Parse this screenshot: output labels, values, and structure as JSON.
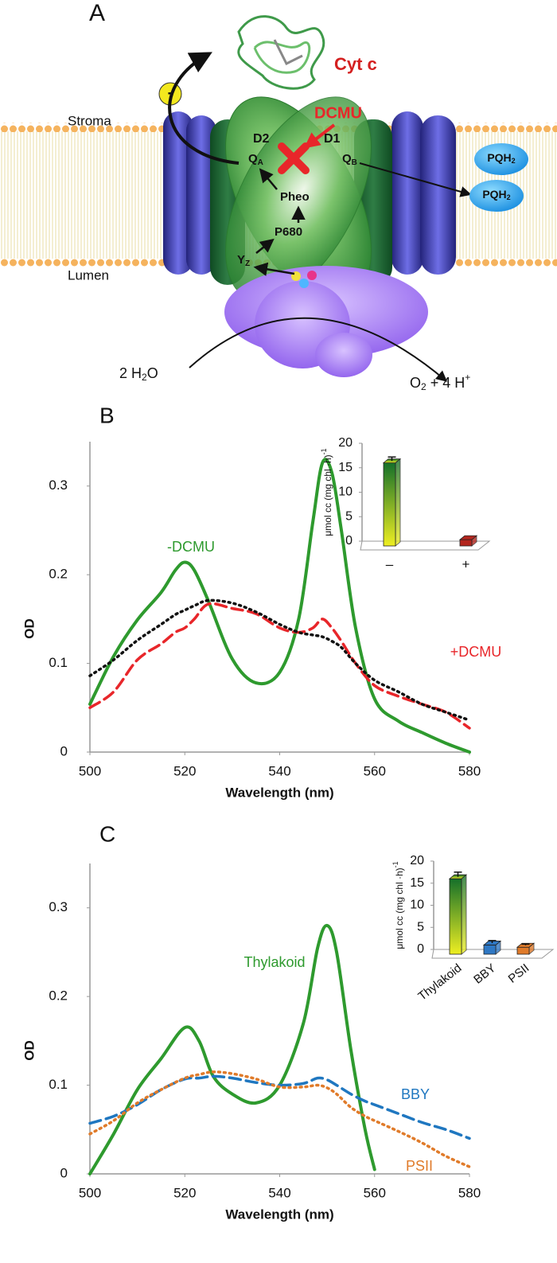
{
  "panel_a": {
    "panel": "A",
    "cyt_c": "Cyt c",
    "dcmu": "DCMU",
    "stroma": "Stroma",
    "lumen": "Lumen",
    "d2": "D2",
    "d1": "D1",
    "qa": [
      "Q",
      "A"
    ],
    "qb": [
      "Q",
      "B"
    ],
    "pheo": "Pheo",
    "p680": "P680",
    "yz": [
      "Y",
      "Z"
    ],
    "pqh2": [
      [
        "PQH",
        "2"
      ],
      [
        "PQH",
        "2"
      ]
    ],
    "electron": "-",
    "water": [
      "2 H",
      "2",
      "O"
    ],
    "products": [
      "O",
      "2",
      " + 4 H",
      "+"
    ]
  },
  "chart_data": [
    {
      "type": "line",
      "panel": "B",
      "xlabel": "Wavelength (nm)",
      "ylabel": "OD",
      "x": [
        500,
        505,
        510,
        515,
        518,
        520,
        522,
        525,
        530,
        535,
        540,
        544,
        547,
        549,
        551,
        553,
        556,
        560,
        565,
        570,
        575,
        580
      ],
      "series": [
        {
          "name": "-DCMU",
          "color": "#2e9a2e",
          "style": "solid",
          "values": [
            0.054,
            0.108,
            0.149,
            0.18,
            0.205,
            0.214,
            0.205,
            0.17,
            0.105,
            0.078,
            0.09,
            0.15,
            0.26,
            0.326,
            0.315,
            0.25,
            0.14,
            0.06,
            0.035,
            0.022,
            0.01,
            0
          ]
        },
        {
          "name": "+DCMU",
          "color": "#e8262a",
          "style": "dashed",
          "values": [
            0.05,
            0.068,
            0.104,
            0.122,
            0.135,
            0.14,
            0.15,
            0.167,
            0.162,
            0.156,
            0.14,
            0.135,
            0.14,
            0.15,
            0.14,
            0.125,
            0.1,
            0.075,
            0.063,
            0.054,
            0.045,
            0.027
          ]
        },
        {
          "color": "#111111",
          "style": "dotted",
          "values": [
            0.086,
            0.104,
            0.126,
            0.144,
            0.155,
            0.16,
            0.165,
            0.171,
            0.168,
            0.158,
            0.144,
            0.135,
            0.132,
            0.13,
            0.125,
            0.118,
            0.1,
            0.081,
            0.068,
            0.054,
            0.045,
            0.036
          ]
        }
      ],
      "xlim": [
        500,
        580
      ],
      "xticks": [
        500,
        520,
        540,
        560,
        580
      ],
      "ylim": [
        0,
        0.35
      ],
      "yticks": [
        0,
        0.1,
        0.2,
        0.3
      ]
    },
    {
      "type": "bar3d",
      "ylabel": "μmol cc (mg chl ·h)",
      "ylabel_sup": "-1",
      "categories": [
        "–",
        "+"
      ],
      "values": [
        16,
        0.3
      ],
      "errors": [
        1.2,
        0
      ],
      "colors": [
        "green-yellow",
        "#b3261e"
      ],
      "ylim": [
        0,
        20
      ],
      "yticks": [
        0,
        5,
        10,
        15,
        20
      ]
    },
    {
      "type": "line",
      "panel": "C",
      "xlabel": "Wavelength (nm)",
      "ylabel": "OD",
      "x": [
        500,
        505,
        510,
        515,
        520,
        523,
        526,
        530,
        535,
        540,
        545,
        548,
        550,
        552,
        555,
        558,
        560,
        565,
        570,
        575,
        580
      ],
      "series": [
        {
          "name": "Thylakoid",
          "color": "#2e9a2e",
          "style": "solid",
          "values": [
            0,
            0.045,
            0.095,
            0.13,
            0.165,
            0.15,
            0.11,
            0.09,
            0.08,
            0.1,
            0.17,
            0.255,
            0.28,
            0.25,
            0.14,
            0.05,
            0.005,
            null,
            null,
            null,
            null
          ]
        },
        {
          "name": "BBY",
          "color": "#1f77c0",
          "style": "dashed",
          "values": [
            0.057,
            0.065,
            0.078,
            0.095,
            0.107,
            0.108,
            0.11,
            0.108,
            0.103,
            0.1,
            0.102,
            0.108,
            0.106,
            0.1,
            0.09,
            0.082,
            0.078,
            0.068,
            0.058,
            0.05,
            0.04
          ]
        },
        {
          "name": "PSII",
          "color": "#e07b2a",
          "style": "dotted",
          "values": [
            0.045,
            0.06,
            0.08,
            0.095,
            0.108,
            0.112,
            0.115,
            0.113,
            0.107,
            0.098,
            0.098,
            0.1,
            0.097,
            0.09,
            0.075,
            0.065,
            0.06,
            0.048,
            0.035,
            0.02,
            0.008
          ]
        }
      ],
      "xlim": [
        500,
        580
      ],
      "xticks": [
        500,
        520,
        540,
        560,
        580
      ],
      "ylim": [
        0,
        0.35
      ],
      "yticks": [
        0,
        0.1,
        0.2,
        0.3
      ]
    },
    {
      "type": "bar3d",
      "ylabel": "μmol cc (mg chl ·h)",
      "ylabel_sup": "-1",
      "categories": [
        "Thylakoid",
        "BBY",
        "PSII"
      ],
      "values": [
        16,
        1,
        0.5
      ],
      "errors": [
        1.5,
        1,
        0.7
      ],
      "colors": [
        "green-yellow",
        "#2f78c4",
        "#e07b2a"
      ],
      "ylim": [
        0,
        20
      ],
      "yticks": [
        0,
        5,
        10,
        15,
        20
      ]
    }
  ]
}
